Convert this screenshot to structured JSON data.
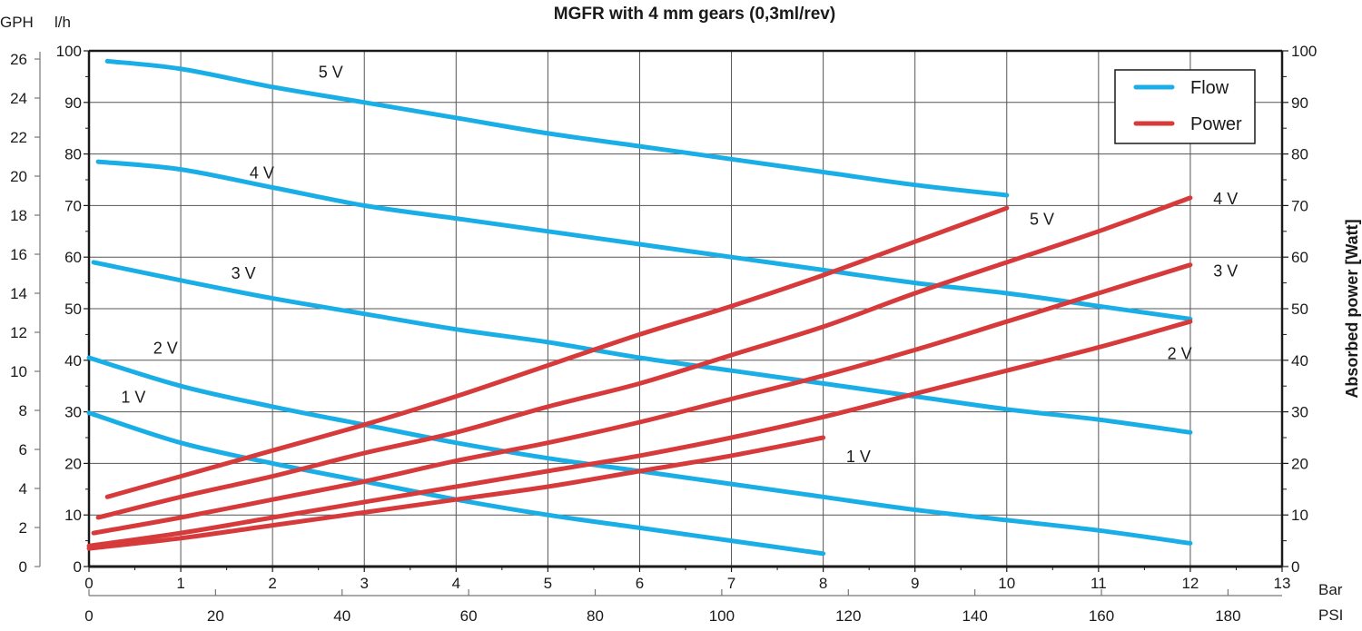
{
  "chart_data": {
    "type": "line",
    "title": "MGFR with 4  mm gears (0,3ml/rev)",
    "xlabel": "Bar",
    "xlabel_secondary": "PSI",
    "ylabel_left_primary": "l/h",
    "ylabel_left_secondary": "GPH",
    "ylabel_right": "Absorbed power [Watt]",
    "xlim": [
      0,
      13
    ],
    "ylim": [
      0,
      100
    ],
    "y2lim": [
      0,
      100
    ],
    "x_ticks": [
      0,
      1,
      2,
      3,
      4,
      5,
      6,
      7,
      8,
      9,
      10,
      11,
      12,
      13
    ],
    "psi_ticks": [
      0,
      20,
      40,
      60,
      80,
      100,
      120,
      140,
      160,
      180
    ],
    "lh_ticks": [
      0,
      10,
      20,
      30,
      40,
      50,
      60,
      70,
      80,
      90,
      100
    ],
    "gph_ticks": [
      0,
      2,
      4,
      6,
      8,
      10,
      12,
      14,
      16,
      18,
      20,
      22,
      24,
      26
    ],
    "watt_ticks": [
      0,
      10,
      20,
      30,
      40,
      50,
      60,
      70,
      80,
      90,
      100
    ],
    "grid": true,
    "legend": {
      "position": "upper right",
      "entries": [
        {
          "label": "Flow",
          "color": "#1aaee6"
        },
        {
          "label": "Power",
          "color": "#d63a3a"
        }
      ]
    },
    "colors": {
      "flow": "#1aaee6",
      "power": "#d63a3a",
      "grid": "#555555",
      "axis": "#1a1a1a"
    },
    "series": [
      {
        "name": "Flow 5 V",
        "kind": "flow",
        "label": "5 V",
        "x": [
          0.2,
          1,
          2,
          3,
          4,
          5,
          6,
          7,
          8,
          9,
          10
        ],
        "values": [
          98,
          96.5,
          93,
          90,
          87,
          84,
          81.5,
          79,
          76.5,
          74,
          72
        ]
      },
      {
        "name": "Flow 4 V",
        "kind": "flow",
        "label": "4 V",
        "x": [
          0.1,
          1,
          2,
          3,
          4,
          5,
          6,
          7,
          8,
          9,
          10,
          11,
          12
        ],
        "values": [
          78.5,
          77,
          73.5,
          70,
          67.5,
          65,
          62.5,
          60,
          57.5,
          55,
          53,
          50.5,
          48
        ]
      },
      {
        "name": "Flow 3 V",
        "kind": "flow",
        "label": "3 V",
        "x": [
          0.05,
          1,
          2,
          3,
          4,
          5,
          6,
          7,
          8,
          9,
          10,
          11,
          12
        ],
        "values": [
          59,
          55.5,
          52,
          49,
          46,
          43.5,
          40.5,
          38,
          35.5,
          33,
          30.5,
          28.5,
          26
        ]
      },
      {
        "name": "Flow 2 V",
        "kind": "flow",
        "label": "2 V",
        "x": [
          0,
          1,
          2,
          3,
          4,
          5,
          6,
          7,
          8,
          9,
          10,
          11,
          12
        ],
        "values": [
          40.5,
          35,
          31,
          27.5,
          24,
          21,
          18.5,
          16,
          13.5,
          11,
          9,
          7,
          4.5
        ]
      },
      {
        "name": "Flow 1 V",
        "kind": "flow",
        "label": "1 V",
        "x": [
          0,
          1,
          2,
          3,
          4,
          5,
          6,
          7,
          8
        ],
        "values": [
          29.8,
          24,
          20,
          16.5,
          13,
          10,
          7.5,
          5,
          2.5
        ]
      },
      {
        "name": "Power 5 V",
        "kind": "power",
        "label": "5 V",
        "x": [
          0.2,
          1,
          2,
          3,
          4,
          5,
          6,
          7,
          8,
          9,
          10
        ],
        "values": [
          13.5,
          17.5,
          22.5,
          27.5,
          33,
          39,
          45,
          50.5,
          56.5,
          63,
          69.5
        ]
      },
      {
        "name": "Power 4 V",
        "kind": "power",
        "label": "4 V",
        "x": [
          0.1,
          1,
          2,
          3,
          4,
          5,
          6,
          7,
          8,
          9,
          10,
          11,
          12
        ],
        "values": [
          9.5,
          13.5,
          17.5,
          22,
          26,
          31,
          35.5,
          41,
          46.5,
          53,
          59,
          65,
          71.5
        ]
      },
      {
        "name": "Power 3 V",
        "kind": "power",
        "label": "3 V",
        "x": [
          0.05,
          1,
          2,
          3,
          4,
          5,
          6,
          7,
          8,
          9,
          10,
          11,
          12
        ],
        "values": [
          6.5,
          9.5,
          13,
          16.5,
          20.5,
          24,
          28,
          32.5,
          37,
          42,
          47.5,
          53,
          58.5
        ]
      },
      {
        "name": "Power 2 V",
        "kind": "power",
        "label": "2 V",
        "x": [
          0,
          1,
          2,
          3,
          4,
          5,
          6,
          7,
          8,
          9,
          10,
          11,
          12
        ],
        "values": [
          4,
          6.5,
          9.5,
          12.5,
          15.5,
          18.5,
          21.5,
          25,
          29,
          33.5,
          38,
          42.5,
          47.5
        ]
      },
      {
        "name": "Power 1 V",
        "kind": "power",
        "label": "1 V",
        "x": [
          0,
          1,
          2,
          3,
          4,
          5,
          6,
          7,
          8
        ],
        "values": [
          3.5,
          5.5,
          8,
          10.5,
          13,
          15.5,
          18.5,
          21.5,
          25
        ]
      }
    ],
    "annotations": [
      {
        "text": "5 V",
        "x": 2.5,
        "y": 96,
        "series": "flow"
      },
      {
        "text": "4 V",
        "x": 1.75,
        "y": 76.5,
        "series": "flow"
      },
      {
        "text": "3 V",
        "x": 1.55,
        "y": 57,
        "series": "flow"
      },
      {
        "text": "2 V",
        "x": 0.7,
        "y": 42.5,
        "series": "flow"
      },
      {
        "text": "1 V",
        "x": 0.35,
        "y": 33,
        "series": "flow"
      },
      {
        "text": "5 V",
        "x": 10.25,
        "y": 67.5,
        "series": "power"
      },
      {
        "text": "4 V",
        "x": 12.25,
        "y": 71.5,
        "series": "power"
      },
      {
        "text": "3 V",
        "x": 12.25,
        "y": 57.5,
        "series": "power"
      },
      {
        "text": "2 V",
        "x": 11.75,
        "y": 41.5,
        "series": "power"
      },
      {
        "text": "1 V",
        "x": 8.25,
        "y": 21.5,
        "series": "power"
      }
    ]
  }
}
